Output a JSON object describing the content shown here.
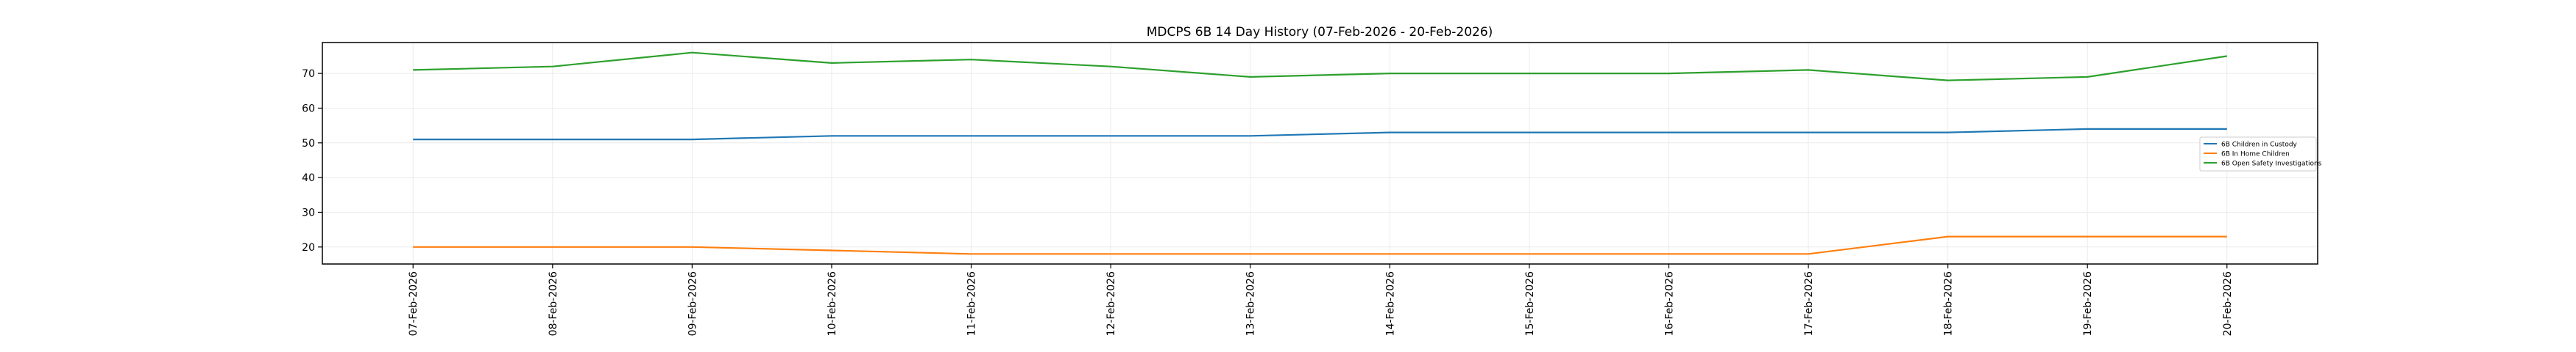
{
  "chart_data": {
    "type": "line",
    "title": "MDCPS 6B 14 Day History (07-Feb-2026 - 20-Feb-2026)",
    "xlabel": "",
    "ylabel": "",
    "categories": [
      "07-Feb-2026",
      "08-Feb-2026",
      "09-Feb-2026",
      "10-Feb-2026",
      "11-Feb-2026",
      "12-Feb-2026",
      "13-Feb-2026",
      "14-Feb-2026",
      "15-Feb-2026",
      "16-Feb-2026",
      "17-Feb-2026",
      "18-Feb-2026",
      "19-Feb-2026",
      "20-Feb-2026"
    ],
    "ylim": [
      15.1,
      78.9
    ],
    "yticks": [
      20,
      30,
      40,
      50,
      60,
      70
    ],
    "grid": true,
    "legend_position": "center-right",
    "series": [
      {
        "name": "6B Children in Custody",
        "color": "#1f77b4",
        "values": [
          51,
          51,
          51,
          52,
          52,
          52,
          52,
          53,
          53,
          53,
          53,
          53,
          54,
          54
        ]
      },
      {
        "name": "6B In Home Children",
        "color": "#ff7f0e",
        "values": [
          20,
          20,
          20,
          19,
          18,
          18,
          18,
          18,
          18,
          18,
          18,
          23,
          23,
          23
        ]
      },
      {
        "name": "6B Open Safety Investigations",
        "color": "#2ca02c",
        "values": [
          71,
          72,
          76,
          73,
          74,
          72,
          69,
          70,
          70,
          70,
          71,
          68,
          69,
          75
        ]
      }
    ]
  }
}
